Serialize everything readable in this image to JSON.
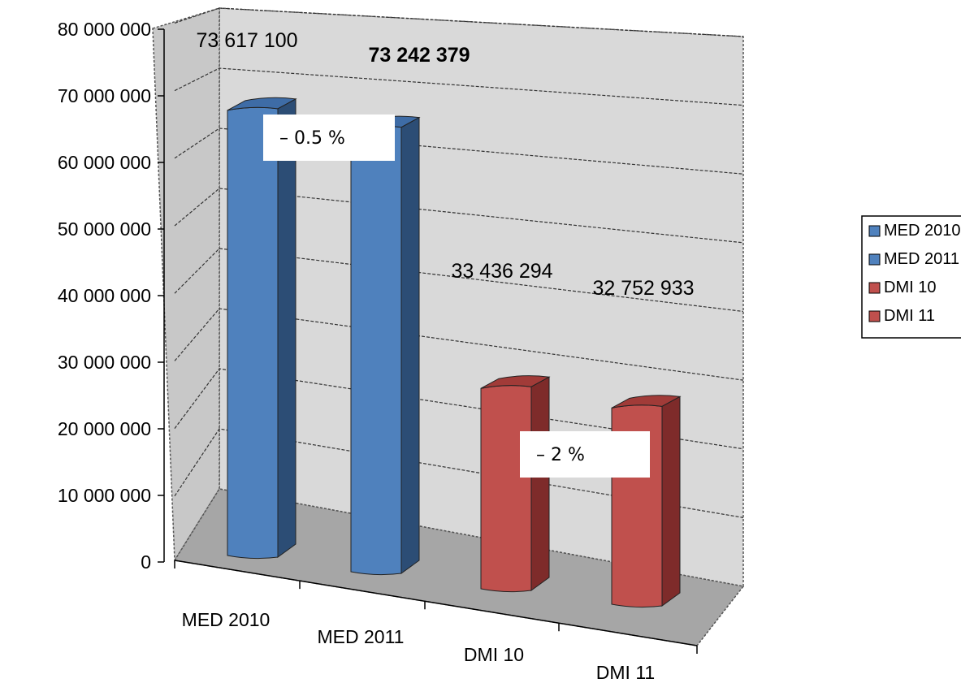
{
  "chart_data": {
    "type": "bar",
    "categories": [
      "MED 2010",
      "MED 2011",
      "DMI 10",
      "DMI 11"
    ],
    "series": [
      {
        "name": "MED 2010",
        "values": [
          73617100,
          null,
          null,
          null
        ],
        "color": "#4F81BD"
      },
      {
        "name": "MED 2011",
        "values": [
          null,
          73242379,
          null,
          null
        ],
        "color": "#4F81BD"
      },
      {
        "name": "DMI 10",
        "values": [
          null,
          null,
          33436294,
          null
        ],
        "color": "#C0504D"
      },
      {
        "name": "DMI 11",
        "values": [
          null,
          null,
          null,
          32752933
        ],
        "color": "#C0504D"
      }
    ],
    "values": [
      73617100,
      73242379,
      33436294,
      32752933
    ],
    "data_labels": [
      "73 617 100",
      "73 242 379",
      "33 436 294",
      "32 752 933"
    ],
    "data_label_bold": [
      false,
      true,
      false,
      false
    ],
    "y_ticks": [
      0,
      10000000,
      20000000,
      30000000,
      40000000,
      50000000,
      60000000,
      70000000,
      80000000
    ],
    "y_tick_labels": [
      "0",
      "10 000 000",
      "20 000 000",
      "30 000 000",
      "40 000 000",
      "50 000 000",
      "60 000 000",
      "70 000 000",
      "80 000 000"
    ],
    "ylim": [
      0,
      80000000
    ],
    "title": "",
    "xlabel": "",
    "ylabel": "",
    "grid": true,
    "style": "3d-column",
    "legend_position": "right",
    "legend": [
      "MED 2010",
      "MED 2011",
      "DMI 10",
      "DMI 11"
    ],
    "annotations": [
      "– 0.5 %",
      "– 2 %"
    ],
    "colors": {
      "blue_front": "#4F81BD",
      "blue_side": "#2C4D75",
      "blue_top": "#3E6CA6",
      "red_front": "#C0504D",
      "red_side": "#7E2B2A",
      "red_top": "#A13B38",
      "wall": "#D9D9D9",
      "floor": "#A6A6A6"
    }
  }
}
